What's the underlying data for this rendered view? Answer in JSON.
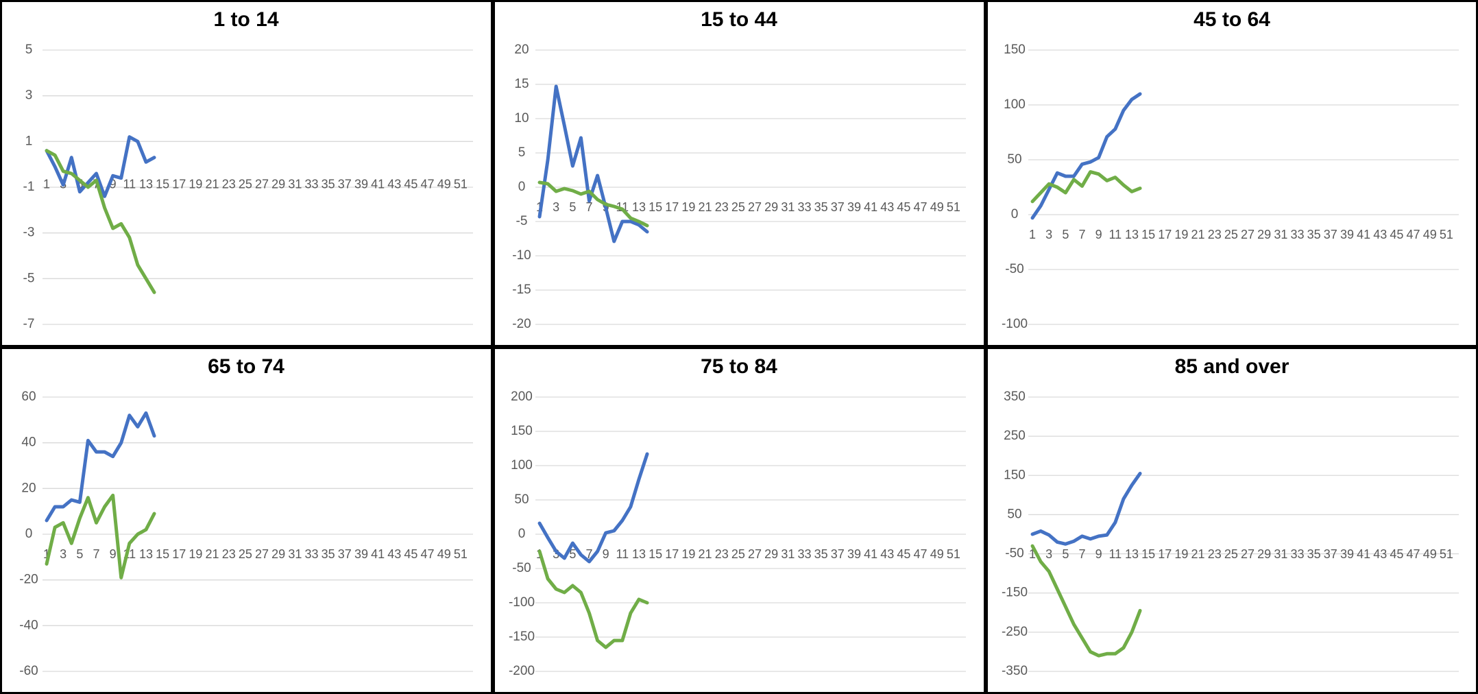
{
  "chart_data": [
    {
      "type": "line",
      "title": "1 to 14",
      "categories": [
        "1",
        null,
        "3",
        null,
        "5",
        null,
        "7",
        null,
        "9",
        null,
        "11",
        null,
        "13",
        null,
        "15",
        null,
        "17",
        null,
        "19",
        null,
        "21",
        null,
        "23",
        null,
        "25",
        null,
        "27",
        null,
        "29",
        null,
        "31",
        null,
        "33",
        null,
        "35",
        null,
        "37",
        null,
        "39",
        null,
        "41",
        null,
        "43",
        null,
        "45",
        null,
        "47",
        null,
        "49",
        null,
        "51",
        null
      ],
      "ylim": [
        -7,
        5
      ],
      "yticks": [
        -7,
        -5,
        -3,
        -1,
        1,
        3,
        5
      ],
      "grid": true,
      "series": [
        {
          "color": "#4472c4",
          "values": [
            0.6,
            -0.1,
            -0.9,
            0.3,
            -1.2,
            -0.8,
            -0.4,
            -1.4,
            -0.5,
            -0.6,
            1.2,
            1.0,
            0.1,
            0.3,
            null,
            null,
            null,
            null,
            null,
            null,
            null,
            null,
            null,
            null,
            null,
            null,
            null,
            null,
            null,
            null,
            null,
            null,
            null,
            null,
            null,
            null,
            null,
            null,
            null,
            null,
            null,
            null,
            null,
            null,
            null,
            null,
            null,
            null,
            null,
            null,
            null,
            null
          ]
        },
        {
          "color": "#70ad47",
          "values": [
            0.6,
            0.4,
            -0.3,
            -0.4,
            -0.7,
            -1.0,
            -0.7,
            -1.9,
            -2.8,
            -2.6,
            -3.2,
            -4.4,
            -5.0,
            -5.6,
            null,
            null,
            null,
            null,
            null,
            null,
            null,
            null,
            null,
            null,
            null,
            null,
            null,
            null,
            null,
            null,
            null,
            null,
            null,
            null,
            null,
            null,
            null,
            null,
            null,
            null,
            null,
            null,
            null,
            null,
            null,
            null,
            null,
            null,
            null,
            null,
            null,
            null
          ]
        }
      ]
    },
    {
      "type": "line",
      "title": "15 to 44",
      "categories": [
        "1",
        null,
        "3",
        null,
        "5",
        null,
        "7",
        null,
        "9",
        null,
        "11",
        null,
        "13",
        null,
        "15",
        null,
        "17",
        null,
        "19",
        null,
        "21",
        null,
        "23",
        null,
        "25",
        null,
        "27",
        null,
        "29",
        null,
        "31",
        null,
        "33",
        null,
        "35",
        null,
        "37",
        null,
        "39",
        null,
        "41",
        null,
        "43",
        null,
        "45",
        null,
        "47",
        null,
        "49",
        null,
        "51",
        null
      ],
      "ylim": [
        -20,
        20
      ],
      "yticks": [
        -20,
        -15,
        -10,
        -5,
        0,
        5,
        10,
        15,
        20
      ],
      "grid": true,
      "series": [
        {
          "color": "#4472c4",
          "values": [
            -4.3,
            4,
            14.7,
            9,
            3.1,
            7.2,
            -2,
            1.7,
            -3,
            -7.9,
            -5,
            -5,
            -5.5,
            -6.5,
            null,
            null,
            null,
            null,
            null,
            null,
            null,
            null,
            null,
            null,
            null,
            null,
            null,
            null,
            null,
            null,
            null,
            null,
            null,
            null,
            null,
            null,
            null,
            null,
            null,
            null,
            null,
            null,
            null,
            null,
            null,
            null,
            null,
            null,
            null,
            null,
            null,
            null
          ]
        },
        {
          "color": "#70ad47",
          "values": [
            0.7,
            0.5,
            -0.6,
            -0.2,
            -0.5,
            -1,
            -0.6,
            -1.8,
            -2.5,
            -2.8,
            -3.2,
            -4.5,
            -5,
            -5.6,
            null,
            null,
            null,
            null,
            null,
            null,
            null,
            null,
            null,
            null,
            null,
            null,
            null,
            null,
            null,
            null,
            null,
            null,
            null,
            null,
            null,
            null,
            null,
            null,
            null,
            null,
            null,
            null,
            null,
            null,
            null,
            null,
            null,
            null,
            null,
            null,
            null,
            null
          ]
        }
      ]
    },
    {
      "type": "line",
      "title": "45 to 64",
      "categories": [
        "1",
        null,
        "3",
        null,
        "5",
        null,
        "7",
        null,
        "9",
        null,
        "11",
        null,
        "13",
        null,
        "15",
        null,
        "17",
        null,
        "19",
        null,
        "21",
        null,
        "23",
        null,
        "25",
        null,
        "27",
        null,
        "29",
        null,
        "31",
        null,
        "33",
        null,
        "35",
        null,
        "37",
        null,
        "39",
        null,
        "41",
        null,
        "43",
        null,
        "45",
        null,
        "47",
        null,
        "49",
        null,
        "51",
        null
      ],
      "ylim": [
        -100,
        150
      ],
      "yticks": [
        -100,
        -50,
        0,
        50,
        100,
        150
      ],
      "grid": true,
      "series": [
        {
          "color": "#4472c4",
          "values": [
            -3,
            8,
            23,
            38,
            35,
            35,
            46,
            48,
            52,
            71,
            78,
            95,
            105,
            110,
            null,
            null,
            null,
            null,
            null,
            null,
            null,
            null,
            null,
            null,
            null,
            null,
            null,
            null,
            null,
            null,
            null,
            null,
            null,
            null,
            null,
            null,
            null,
            null,
            null,
            null,
            null,
            null,
            null,
            null,
            null,
            null,
            null,
            null,
            null,
            null,
            null,
            null
          ]
        },
        {
          "color": "#70ad47",
          "values": [
            12,
            20,
            28,
            25,
            20,
            32,
            26,
            39,
            37,
            31,
            34,
            27,
            21,
            24,
            null,
            null,
            null,
            null,
            null,
            null,
            null,
            null,
            null,
            null,
            null,
            null,
            null,
            null,
            null,
            null,
            null,
            null,
            null,
            null,
            null,
            null,
            null,
            null,
            null,
            null,
            null,
            null,
            null,
            null,
            null,
            null,
            null,
            null,
            null,
            null,
            null,
            null
          ]
        }
      ]
    },
    {
      "type": "line",
      "title": "65 to 74",
      "categories": [
        "1",
        null,
        "3",
        null,
        "5",
        null,
        "7",
        null,
        "9",
        null,
        "11",
        null,
        "13",
        null,
        "15",
        null,
        "17",
        null,
        "19",
        null,
        "21",
        null,
        "23",
        null,
        "25",
        null,
        "27",
        null,
        "29",
        null,
        "31",
        null,
        "33",
        null,
        "35",
        null,
        "37",
        null,
        "39",
        null,
        "41",
        null,
        "43",
        null,
        "45",
        null,
        "47",
        null,
        "49",
        null,
        "51",
        null
      ],
      "ylim": [
        -60,
        60
      ],
      "yticks": [
        -60,
        -40,
        -20,
        0,
        20,
        40,
        60
      ],
      "grid": true,
      "series": [
        {
          "color": "#4472c4",
          "values": [
            6,
            12,
            12,
            15,
            14,
            41,
            36,
            36,
            34,
            40,
            52,
            47,
            53,
            43,
            null,
            null,
            null,
            null,
            null,
            null,
            null,
            null,
            null,
            null,
            null,
            null,
            null,
            null,
            null,
            null,
            null,
            null,
            null,
            null,
            null,
            null,
            null,
            null,
            null,
            null,
            null,
            null,
            null,
            null,
            null,
            null,
            null,
            null,
            null,
            null,
            null,
            null
          ]
        },
        {
          "color": "#70ad47",
          "values": [
            -13,
            3,
            5,
            -4,
            7,
            16,
            5,
            12,
            17,
            -19,
            -4,
            0,
            2,
            9,
            null,
            null,
            null,
            null,
            null,
            null,
            null,
            null,
            null,
            null,
            null,
            null,
            null,
            null,
            null,
            null,
            null,
            null,
            null,
            null,
            null,
            null,
            null,
            null,
            null,
            null,
            null,
            null,
            null,
            null,
            null,
            null,
            null,
            null,
            null,
            null,
            null,
            null
          ]
        }
      ]
    },
    {
      "type": "line",
      "title": "75 to 84",
      "categories": [
        "1",
        null,
        "3",
        null,
        "5",
        null,
        "7",
        null,
        "9",
        null,
        "11",
        null,
        "13",
        null,
        "15",
        null,
        "17",
        null,
        "19",
        null,
        "21",
        null,
        "23",
        null,
        "25",
        null,
        "27",
        null,
        "29",
        null,
        "31",
        null,
        "33",
        null,
        "35",
        null,
        "37",
        null,
        "39",
        null,
        "41",
        null,
        "43",
        null,
        "45",
        null,
        "47",
        null,
        "49",
        null,
        "51",
        null
      ],
      "ylim": [
        -200,
        200
      ],
      "yticks": [
        -200,
        -150,
        -100,
        -50,
        0,
        50,
        100,
        150,
        200
      ],
      "grid": true,
      "series": [
        {
          "color": "#4472c4",
          "values": [
            16,
            -5,
            -25,
            -35,
            -13,
            -30,
            -40,
            -25,
            2,
            5,
            20,
            40,
            80,
            117,
            null,
            null,
            null,
            null,
            null,
            null,
            null,
            null,
            null,
            null,
            null,
            null,
            null,
            null,
            null,
            null,
            null,
            null,
            null,
            null,
            null,
            null,
            null,
            null,
            null,
            null,
            null,
            null,
            null,
            null,
            null,
            null,
            null,
            null,
            null,
            null,
            null,
            null
          ]
        },
        {
          "color": "#70ad47",
          "values": [
            -25,
            -65,
            -80,
            -85,
            -75,
            -85,
            -115,
            -155,
            -165,
            -155,
            -155,
            -115,
            -95,
            -100,
            null,
            null,
            null,
            null,
            null,
            null,
            null,
            null,
            null,
            null,
            null,
            null,
            null,
            null,
            null,
            null,
            null,
            null,
            null,
            null,
            null,
            null,
            null,
            null,
            null,
            null,
            null,
            null,
            null,
            null,
            null,
            null,
            null,
            null,
            null,
            null,
            null,
            null
          ]
        }
      ]
    },
    {
      "type": "line",
      "title": "85 and over",
      "categories": [
        "1",
        null,
        "3",
        null,
        "5",
        null,
        "7",
        null,
        "9",
        null,
        "11",
        null,
        "13",
        null,
        "15",
        null,
        "17",
        null,
        "19",
        null,
        "21",
        null,
        "23",
        null,
        "25",
        null,
        "27",
        null,
        "29",
        null,
        "31",
        null,
        "33",
        null,
        "35",
        null,
        "37",
        null,
        "39",
        null,
        "41",
        null,
        "43",
        null,
        "45",
        null,
        "47",
        null,
        "49",
        null,
        "51",
        null
      ],
      "ylim": [
        -350,
        350
      ],
      "yticks": [
        -350,
        -250,
        -150,
        -50,
        50,
        150,
        250,
        350
      ],
      "grid": true,
      "series": [
        {
          "color": "#4472c4",
          "values": [
            0,
            8,
            -2,
            -20,
            -25,
            -18,
            -5,
            -12,
            -5,
            -2,
            30,
            90,
            125,
            155,
            null,
            null,
            null,
            null,
            null,
            null,
            null,
            null,
            null,
            null,
            null,
            null,
            null,
            null,
            null,
            null,
            null,
            null,
            null,
            null,
            null,
            null,
            null,
            null,
            null,
            null,
            null,
            null,
            null,
            null,
            null,
            null,
            null,
            null,
            null,
            null,
            null,
            null
          ]
        },
        {
          "color": "#70ad47",
          "values": [
            -30,
            -70,
            -95,
            -140,
            -185,
            -230,
            -265,
            -300,
            -310,
            -305,
            -305,
            -290,
            -250,
            -195,
            null,
            null,
            null,
            null,
            null,
            null,
            null,
            null,
            null,
            null,
            null,
            null,
            null,
            null,
            null,
            null,
            null,
            null,
            null,
            null,
            null,
            null,
            null,
            null,
            null,
            null,
            null,
            null,
            null,
            null,
            null,
            null,
            null,
            null,
            null,
            null,
            null,
            null
          ]
        }
      ]
    }
  ]
}
